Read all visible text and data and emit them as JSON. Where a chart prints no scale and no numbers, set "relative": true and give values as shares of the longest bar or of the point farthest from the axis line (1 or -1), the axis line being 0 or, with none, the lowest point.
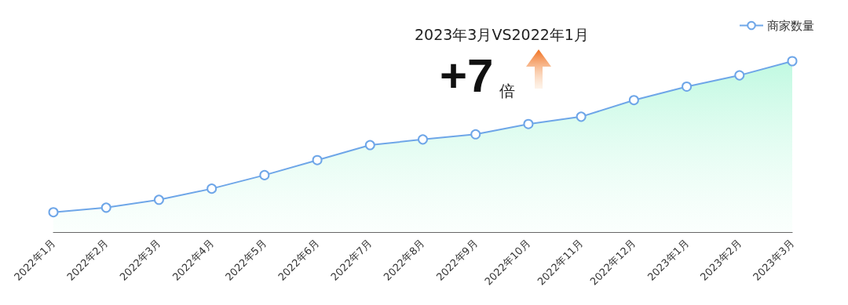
{
  "chart_data": {
    "type": "area",
    "relative": true,
    "categories": [
      "2022年1月",
      "2022年2月",
      "2022年3月",
      "2022年4月",
      "2022年5月",
      "2022年6月",
      "2022年7月",
      "2022年8月",
      "2022年9月",
      "2022年10月",
      "2022年11月",
      "2022年12月",
      "2023年1月",
      "2023年2月",
      "2023年3月"
    ],
    "series": [
      {
        "name": "商家数量",
        "color": "#6ea6e8",
        "values": [
          0.116,
          0.143,
          0.189,
          0.254,
          0.333,
          0.421,
          0.509,
          0.542,
          0.572,
          0.632,
          0.675,
          0.772,
          0.851,
          0.917,
          1
        ]
      }
    ],
    "annotations": [
      "2023年3月VS2022年1月",
      "+7倍"
    ],
    "legend": "top right",
    "marker": "circle",
    "grid": false
  }
}
